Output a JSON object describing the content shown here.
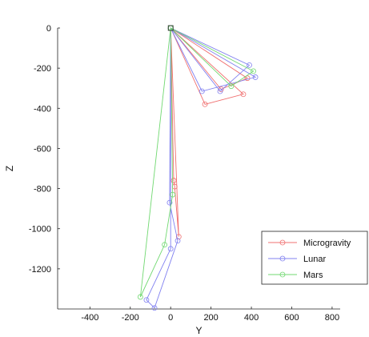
{
  "chart_data": {
    "type": "line",
    "xlabel": "Y",
    "ylabel": "Z",
    "xlim": [
      -560,
      840
    ],
    "ylim": [
      -1400,
      0
    ],
    "x_ticks": [
      -400,
      -200,
      0,
      200,
      400,
      600,
      800
    ],
    "y_ticks": [
      0,
      -200,
      -400,
      -600,
      -800,
      -1000,
      -1200
    ],
    "grid": false,
    "legend_position": "lower-right",
    "series": [
      {
        "name": "Microgravity",
        "color": "#f07070",
        "points": [
          [
            0,
            0
          ],
          [
            360,
            -330
          ],
          [
            170,
            -380
          ],
          [
            0,
            0
          ],
          [
            250,
            -305
          ],
          [
            380,
            -250
          ],
          [
            0,
            0
          ],
          [
            15,
            -760
          ],
          [
            20,
            -790
          ],
          [
            40,
            -1040
          ],
          [
            0,
            0
          ]
        ]
      },
      {
        "name": "Lunar",
        "color": "#8080f0",
        "points": [
          [
            0,
            0
          ],
          [
            155,
            -315
          ],
          [
            420,
            -245
          ],
          [
            0,
            0
          ],
          [
            245,
            -315
          ],
          [
            390,
            -185
          ],
          [
            0,
            0
          ],
          [
            -5,
            -870
          ],
          [
            35,
            -1060
          ],
          [
            -80,
            -1395
          ],
          [
            -120,
            -1355
          ],
          [
            0,
            -1100
          ],
          [
            0,
            0
          ]
        ]
      },
      {
        "name": "Mars",
        "color": "#70d870",
        "points": [
          [
            0,
            0
          ],
          [
            300,
            -290
          ],
          [
            410,
            -215
          ],
          [
            0,
            0
          ],
          [
            10,
            -830
          ],
          [
            -30,
            -1080
          ],
          [
            -150,
            -1340
          ],
          [
            0,
            0
          ]
        ]
      }
    ]
  }
}
